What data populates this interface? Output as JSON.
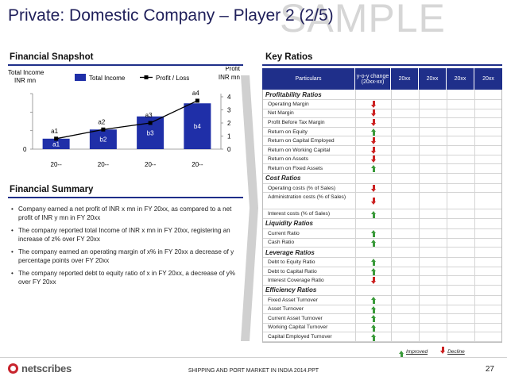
{
  "slide": {
    "title": "Private: Domestic Company – Player 2 (2/5)",
    "watermark": "SAMPLE",
    "page_number": "27",
    "footer": "SHIPPING AND PORT MARKET IN INDIA 2014.PPT",
    "logo": "netscribes"
  },
  "snapshot": {
    "title": "Financial Snapshot"
  },
  "chart_data": {
    "type": "bar",
    "categories": [
      "20--",
      "20--",
      "20--",
      "20--"
    ],
    "series": [
      {
        "name": "Total Income",
        "values": [
          0.8,
          1.5,
          2.5,
          3.5
        ],
        "bar_labels": [
          "a1",
          "b2",
          "b3",
          "b4"
        ],
        "color": "#1f2fa8"
      },
      {
        "name": "Profit / Loss",
        "values": [
          0.8,
          1.5,
          2.0,
          3.7
        ],
        "point_labels": [
          "a1",
          "a2",
          "a3",
          "a4"
        ],
        "color": "#000000",
        "axis": "right"
      }
    ],
    "ylabel_left": [
      "Total Income",
      "INR mn"
    ],
    "ylabel_right": [
      "Profit",
      "INR mn"
    ],
    "y_left_ticks": [
      "0"
    ],
    "y_right_ticks": [
      "0",
      "1",
      "2",
      "3",
      "4"
    ],
    "ylim": [
      0,
      4
    ],
    "legend_position": "top",
    "grid": false
  },
  "summary": {
    "title": "Financial Summary",
    "bullets": [
      "Company earned a net profit of INR x mn in FY 20xx, as compared to a net profit of INR y mn in FY 20xx",
      "The company reported total Income of INR x mn in FY 20xx, registering an increase of z% over FY 20xx",
      "The company earned an operating margin of x% in FY 20xx a decrease of y percentage points over FY 20xx",
      "The company reported debt to equity ratio of x in FY 20xx, a decrease of y% over FY 20xx"
    ]
  },
  "ratios": {
    "title": "Key Ratios",
    "headers": {
      "particulars": "Particulars",
      "yoy_line1": "y-o-y change",
      "yoy_line2": "(20xx-xx)",
      "years": [
        "20xx",
        "20xx",
        "20xx",
        "20xx"
      ]
    },
    "groups": [
      {
        "name": "Profitability Ratios",
        "rows": [
          {
            "label": "Operating Margin",
            "trend": "down"
          },
          {
            "label": "Net Margin",
            "trend": "down"
          },
          {
            "label": "Profit Before Tax Margin",
            "trend": "down"
          },
          {
            "label": "Return on Equity",
            "trend": "up"
          },
          {
            "label": "Return on Capital Employed",
            "trend": "down"
          },
          {
            "label": "Return on Working Capital",
            "trend": "down"
          },
          {
            "label": "Return on Assets",
            "trend": "down"
          },
          {
            "label": "Return on Fixed Assets",
            "trend": "up"
          }
        ]
      },
      {
        "name": "Cost Ratios",
        "rows": [
          {
            "label": "Operating costs (% of Sales)",
            "trend": "down"
          },
          {
            "label": "Administration costs (% of Sales)",
            "trend": "down",
            "tall": true
          },
          {
            "label": "Interest costs (% of Sales)",
            "trend": "up"
          }
        ]
      },
      {
        "name": "Liquidity Ratios",
        "rows": [
          {
            "label": "Current Ratio",
            "trend": "up"
          },
          {
            "label": "Cash Ratio",
            "trend": "up"
          }
        ]
      },
      {
        "name": "Leverage Ratios",
        "rows": [
          {
            "label": "Debt to Equity Ratio",
            "trend": "up"
          },
          {
            "label": "Debt to Capital Ratio",
            "trend": "up"
          },
          {
            "label": "Interest Coverage Ratio",
            "trend": "down"
          }
        ]
      },
      {
        "name": "Efficiency Ratios",
        "rows": [
          {
            "label": "Fixed Asset Turnover",
            "trend": "up"
          },
          {
            "label": "Asset Turnover",
            "trend": "up"
          },
          {
            "label": "Current Asset Turnover",
            "trend": "up"
          },
          {
            "label": "Working Capital Turnover",
            "trend": "up"
          },
          {
            "label": "Capital Employed Turnover",
            "trend": "up"
          }
        ]
      }
    ],
    "legend": {
      "improved": "Improved",
      "decline": "Decline"
    },
    "colors": {
      "up": "#3a9a3a",
      "down": "#cc2222",
      "header": "#1f2f8a"
    }
  }
}
